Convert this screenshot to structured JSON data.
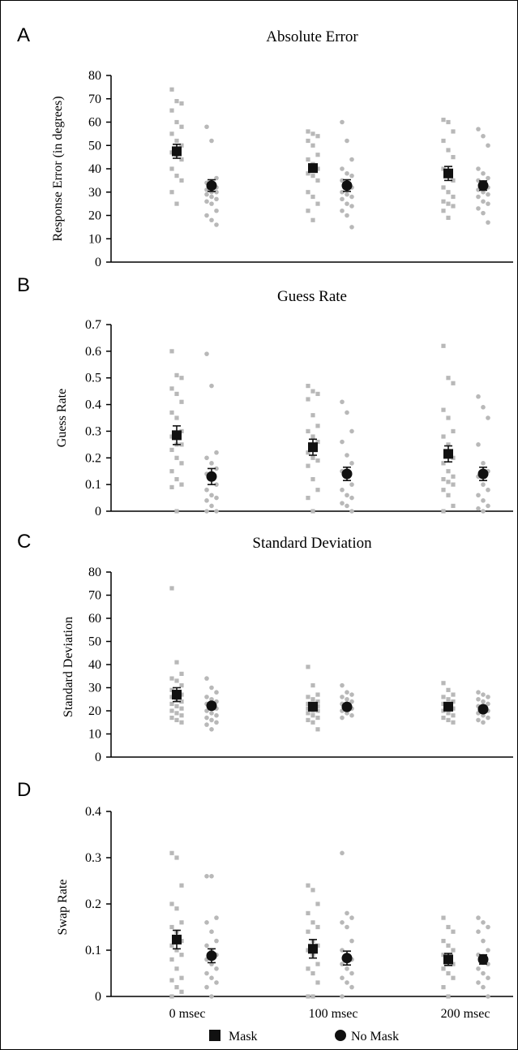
{
  "chart_data": [
    {
      "panel": "A",
      "type": "scatter",
      "title": "Absolute Error",
      "ylabel": "Response Error (in degrees)",
      "xlabel": "",
      "ylim": [
        0,
        80
      ],
      "yticks": [
        0,
        10,
        20,
        30,
        40,
        50,
        60,
        70,
        80
      ],
      "categories": [
        "0 msec",
        "100 msec",
        "200 msec"
      ],
      "series": [
        {
          "name": "Mask",
          "means": [
            47.5,
            40.3,
            38
          ],
          "errors": [
            3,
            1.5,
            3
          ],
          "points": [
            [
              74,
              69,
              68,
              65,
              60,
              58,
              55,
              52,
              50,
              47,
              46,
              44,
              40,
              37,
              35,
              30,
              25
            ],
            [
              56,
              55,
              54,
              52,
              50,
              46,
              44,
              42,
              40,
              38,
              37,
              35,
              30,
              28,
              25,
              22,
              18
            ],
            [
              61,
              60,
              56,
              52,
              48,
              45,
              40,
              38,
              35,
              32,
              30,
              28,
              26,
              25,
              24,
              22,
              19
            ]
          ]
        },
        {
          "name": "No Mask",
          "means": [
            32.8,
            32.8,
            32.8
          ],
          "errors": [
            2.5,
            2.5,
            2
          ],
          "points": [
            [
              58,
              52,
              36,
              34,
              33,
              32,
              31,
              30,
              30,
              29,
              28,
              27,
              26,
              25,
              22,
              20,
              18,
              16
            ],
            [
              60,
              52,
              44,
              40,
              38,
              37,
              35,
              33,
              32,
              30,
              29,
              28,
              27,
              25,
              24,
              22,
              20,
              15
            ],
            [
              57,
              54,
              50,
              40,
              38,
              36,
              35,
              33,
              32,
              31,
              30,
              29,
              28,
              26,
              25,
              23,
              21,
              17
            ]
          ]
        }
      ]
    },
    {
      "panel": "B",
      "type": "scatter",
      "title": "Guess Rate",
      "ylabel": "Guess Rate",
      "xlabel": "",
      "ylim": [
        0,
        0.7
      ],
      "yticks": [
        0,
        0.1,
        0.2,
        0.3,
        0.4,
        0.5,
        0.6,
        0.7
      ],
      "categories": [
        "0 msec",
        "100 msec",
        "200 msec"
      ],
      "series": [
        {
          "name": "Mask",
          "means": [
            0.285,
            0.24,
            0.215
          ],
          "errors": [
            0.035,
            0.03,
            0.03
          ],
          "points": [
            [
              0.6,
              0.51,
              0.5,
              0.46,
              0.44,
              0.41,
              0.37,
              0.35,
              0.3,
              0.28,
              0.25,
              0.25,
              0.23,
              0.2,
              0.18,
              0.15,
              0.12,
              0.1,
              0.09,
              0.0
            ],
            [
              0.47,
              0.45,
              0.44,
              0.42,
              0.36,
              0.32,
              0.3,
              0.28,
              0.26,
              0.22,
              0.2,
              0.19,
              0.17,
              0.12,
              0.08,
              0.05,
              0.0
            ],
            [
              0.62,
              0.5,
              0.48,
              0.38,
              0.35,
              0.3,
              0.28,
              0.25,
              0.2,
              0.18,
              0.15,
              0.13,
              0.12,
              0.11,
              0.1,
              0.08,
              0.06,
              0.02,
              0.0
            ]
          ]
        },
        {
          "name": "No Mask",
          "means": [
            0.13,
            0.14,
            0.14
          ],
          "errors": [
            0.03,
            0.025,
            0.025
          ],
          "points": [
            [
              0.59,
              0.47,
              0.22,
              0.2,
              0.18,
              0.16,
              0.14,
              0.12,
              0.1,
              0.08,
              0.06,
              0.05,
              0.04,
              0.02,
              0.0,
              0.0
            ],
            [
              0.41,
              0.37,
              0.3,
              0.26,
              0.21,
              0.18,
              0.15,
              0.13,
              0.1,
              0.08,
              0.06,
              0.05,
              0.03,
              0.02,
              0.0
            ],
            [
              0.43,
              0.39,
              0.35,
              0.25,
              0.18,
              0.15,
              0.13,
              0.1,
              0.08,
              0.06,
              0.04,
              0.02,
              0.01,
              0.0
            ]
          ]
        }
      ]
    },
    {
      "panel": "C",
      "type": "scatter",
      "title": "Standard Deviation",
      "ylabel": "Standard Deviation",
      "xlabel": "",
      "ylim": [
        0,
        80
      ],
      "yticks": [
        0,
        10,
        20,
        30,
        40,
        50,
        60,
        70,
        80
      ],
      "categories": [
        "0 msec",
        "100 msec",
        "200 msec"
      ],
      "series": [
        {
          "name": "Mask",
          "means": [
            27,
            21.8,
            21.8
          ],
          "errors": [
            3,
            1.5,
            1.5
          ],
          "points": [
            [
              73,
              41,
              36,
              34,
              33,
              31,
              29,
              28,
              27,
              26,
              25,
              24,
              23,
              22,
              21,
              20,
              19,
              18,
              17,
              16,
              15
            ],
            [
              39,
              31,
              27,
              26,
              25,
              24,
              23,
              22,
              22,
              21,
              20,
              20,
              19,
              18,
              17,
              16,
              15,
              12
            ],
            [
              32,
              29,
              27,
              26,
              25,
              24,
              23,
              22,
              21,
              20,
              19,
              18,
              17,
              16,
              15
            ]
          ]
        },
        {
          "name": "No Mask",
          "means": [
            22.2,
            21.7,
            20.7
          ],
          "errors": [
            1,
            1,
            1
          ],
          "points": [
            [
              34,
              30,
              28,
              26,
              25,
              24,
              23,
              22,
              21,
              20,
              19,
              18,
              17,
              16,
              15,
              14,
              12
            ],
            [
              31,
              28,
              27,
              26,
              25,
              24,
              23,
              22,
              21,
              20,
              19,
              18,
              17
            ],
            [
              28,
              27,
              26,
              25,
              24,
              23,
              22,
              21,
              20,
              19,
              18,
              17,
              16,
              15
            ]
          ]
        }
      ]
    },
    {
      "panel": "D",
      "type": "scatter",
      "title": "",
      "ylabel": "Swap Rate",
      "xlabel": "",
      "ylim": [
        0,
        0.4
      ],
      "yticks": [
        0,
        0.1,
        0.2,
        0.3,
        0.4
      ],
      "categories": [
        "0 msec",
        "100 msec",
        "200 msec"
      ],
      "series": [
        {
          "name": "Mask",
          "means": [
            0.123,
            0.103,
            0.08
          ],
          "errors": [
            0.02,
            0.02,
            0.013
          ],
          "points": [
            [
              0.31,
              0.3,
              0.24,
              0.2,
              0.19,
              0.16,
              0.15,
              0.14,
              0.12,
              0.11,
              0.1,
              0.09,
              0.08,
              0.06,
              0.04,
              0.035,
              0.02,
              0.01,
              0.0
            ],
            [
              0.24,
              0.23,
              0.2,
              0.18,
              0.16,
              0.15,
              0.14,
              0.12,
              0.11,
              0.1,
              0.09,
              0.07,
              0.06,
              0.05,
              0.03,
              0.0,
              0.0
            ],
            [
              0.17,
              0.15,
              0.14,
              0.12,
              0.11,
              0.1,
              0.09,
              0.08,
              0.07,
              0.06,
              0.05,
              0.04,
              0.02,
              0.0
            ]
          ]
        },
        {
          "name": "No Mask",
          "means": [
            0.088,
            0.083,
            0.08
          ],
          "errors": [
            0.015,
            0.015,
            0.01
          ],
          "points": [
            [
              0.26,
              0.26,
              0.17,
              0.16,
              0.14,
              0.12,
              0.11,
              0.1,
              0.09,
              0.08,
              0.07,
              0.06,
              0.05,
              0.04,
              0.03,
              0.02,
              0.0
            ],
            [
              0.31,
              0.18,
              0.17,
              0.16,
              0.15,
              0.12,
              0.1,
              0.09,
              0.08,
              0.07,
              0.06,
              0.05,
              0.04,
              0.03,
              0.02,
              0.0
            ],
            [
              0.17,
              0.16,
              0.15,
              0.14,
              0.12,
              0.1,
              0.09,
              0.08,
              0.07,
              0.06,
              0.05,
              0.04,
              0.03,
              0.02,
              0.0
            ]
          ]
        }
      ]
    }
  ],
  "legend": {
    "position": "bottom",
    "mask_label": "Mask",
    "nomask_label": "No Mask"
  },
  "colors": {
    "points": "#b8b8b8",
    "markers": "#111111"
  }
}
